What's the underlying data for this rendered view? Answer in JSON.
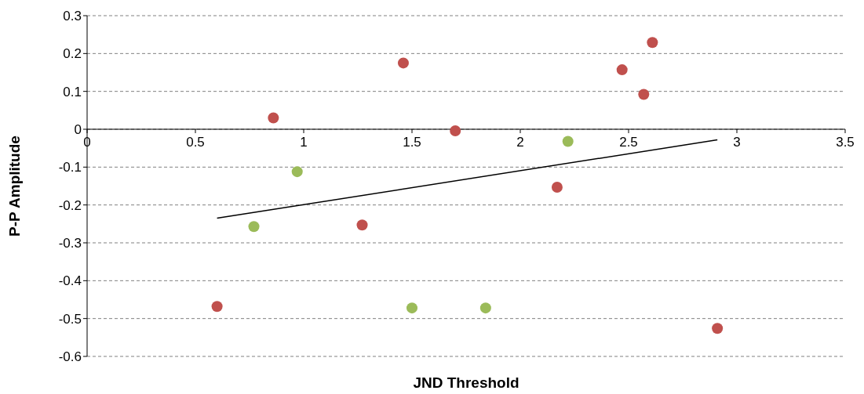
{
  "chart_data": {
    "type": "scatter",
    "xlabel": "JND Threshold",
    "ylabel": "P-P Amplitude",
    "xlim": [
      0,
      3.5
    ],
    "xticks": [
      0,
      0.5,
      1,
      1.5,
      2,
      2.5,
      3,
      3.5
    ],
    "ylim": [
      -0.6,
      0.3
    ],
    "yticks": [
      -0.6,
      -0.5,
      -0.4,
      -0.3,
      -0.2,
      -0.1,
      0,
      0.1,
      0.2,
      0.3
    ],
    "grid": "y",
    "marker": "circle",
    "legend": false,
    "series": [
      {
        "type": "scatter",
        "color": "#c0504d",
        "x": [
          0.86,
          1.46,
          1.7,
          2.47,
          2.61,
          2.57,
          2.17,
          1.27,
          0.6,
          2.91
        ],
        "values": [
          0.03,
          0.175,
          -0.004,
          0.157,
          0.229,
          0.092,
          -0.153,
          -0.253,
          -0.468,
          -0.526
        ]
      },
      {
        "type": "scatter",
        "color": "#9bbb59",
        "x": [
          2.22,
          0.97,
          0.77,
          1.5,
          1.84
        ],
        "values": [
          -0.032,
          -0.112,
          -0.257,
          -0.472,
          -0.472
        ]
      },
      {
        "type": "line",
        "color": "#000000",
        "marker": "none",
        "x": [
          0.6,
          2.91
        ],
        "values": [
          -0.235,
          -0.028
        ]
      }
    ]
  }
}
